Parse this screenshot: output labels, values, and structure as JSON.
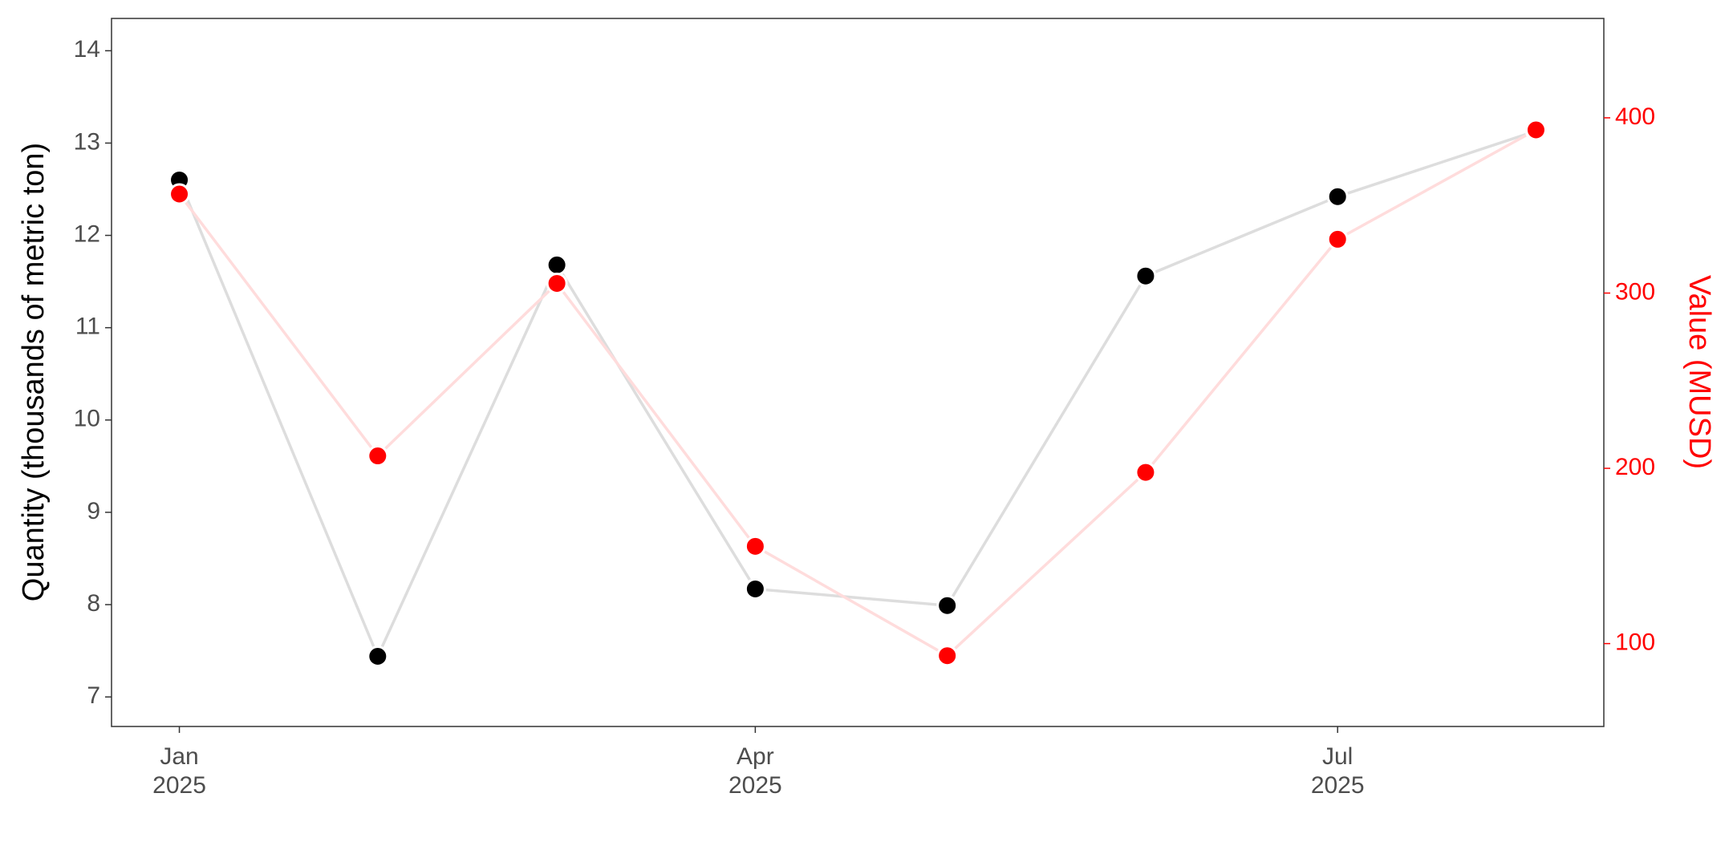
{
  "chart_data": {
    "type": "line",
    "x": [
      "2025-01",
      "2025-02",
      "2025-03",
      "2025-04",
      "2025-05",
      "2025-06",
      "2025-07",
      "2025-08"
    ],
    "xticks": [
      {
        "value": "2025-01",
        "label": "Jan\n2025"
      },
      {
        "value": "2025-04",
        "label": "Apr\n2025"
      },
      {
        "value": "2025-07",
        "label": "Jul\n2025"
      }
    ],
    "y_label": "Quantity (thousands of metric ton)",
    "y2_label": "Value (MUSD)",
    "ylim": [
      6.68,
      14.35
    ],
    "yticks": [
      7,
      8,
      9,
      10,
      11,
      12,
      13,
      14
    ],
    "y2lim": [
      52.7,
      456.7
    ],
    "y2ticks": [
      100,
      200,
      300,
      400
    ],
    "y2_color": "#ff0000",
    "grid": false,
    "series": [
      {
        "color": "#000000",
        "line_color": "#dddddd",
        "axis": "y",
        "values": [
          12.6,
          7.44,
          11.68,
          8.17,
          7.99,
          11.56,
          12.42,
          13.13
        ]
      },
      {
        "color": "#ff0000",
        "line_color": "#ffdcdc",
        "axis": "y2",
        "values": [
          356.5,
          207.1,
          305.5,
          155.5,
          93.1,
          197.7,
          330.7,
          393.1
        ]
      }
    ]
  }
}
